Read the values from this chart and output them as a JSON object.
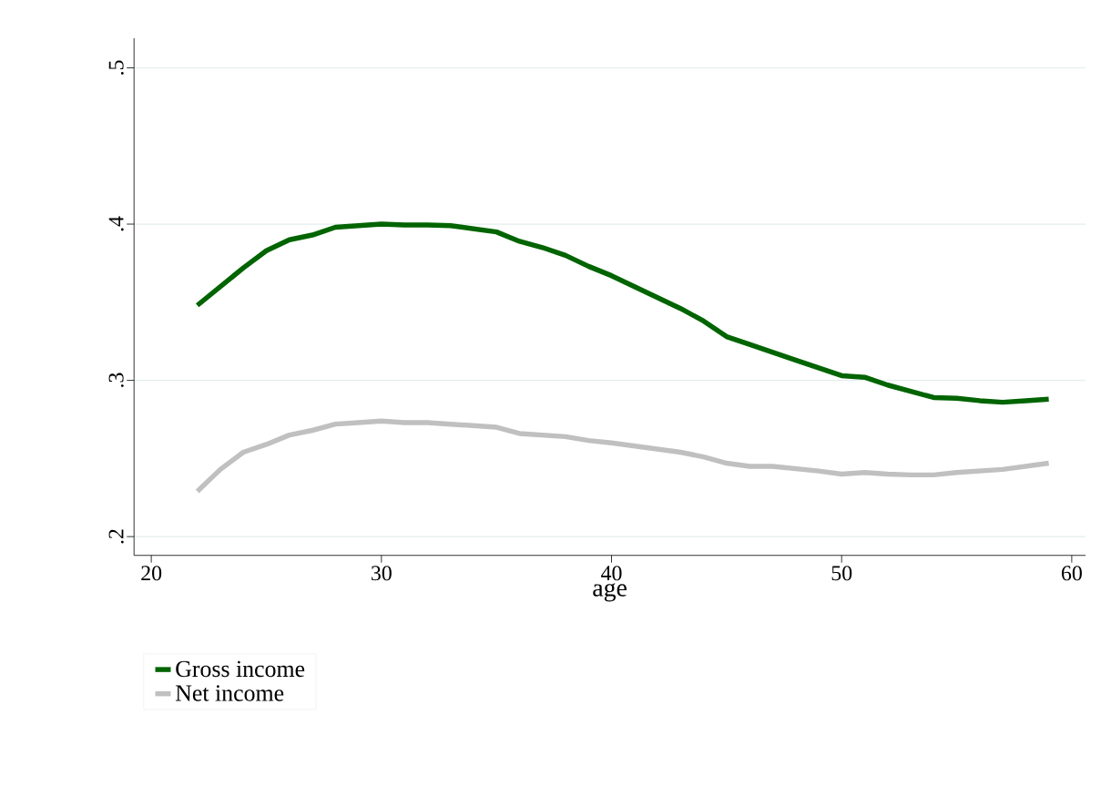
{
  "chart_data": {
    "type": "line",
    "xlabel": "age",
    "x": [
      22,
      23,
      24,
      25,
      26,
      27,
      28,
      29,
      30,
      31,
      32,
      33,
      34,
      35,
      36,
      37,
      38,
      39,
      40,
      41,
      42,
      43,
      44,
      45,
      46,
      47,
      48,
      49,
      50,
      51,
      52,
      53,
      54,
      55,
      56,
      57,
      58,
      59
    ],
    "series": [
      {
        "name": "Gross income",
        "color": "#006400",
        "values": [
          0.348,
          0.36,
          0.372,
          0.383,
          0.39,
          0.393,
          0.398,
          0.399,
          0.4,
          0.3995,
          0.3995,
          0.399,
          0.397,
          0.395,
          0.389,
          0.385,
          0.38,
          0.373,
          0.367,
          0.36,
          0.353,
          0.346,
          0.338,
          0.328,
          0.323,
          0.318,
          0.313,
          0.308,
          0.303,
          0.302,
          0.297,
          0.293,
          0.289,
          0.2885,
          0.287,
          0.286,
          0.287,
          0.288
        ]
      },
      {
        "name": "Net income",
        "color": "#c0c0c0",
        "values": [
          0.229,
          0.243,
          0.254,
          0.259,
          0.265,
          0.268,
          0.272,
          0.273,
          0.274,
          0.273,
          0.273,
          0.272,
          0.271,
          0.27,
          0.266,
          0.265,
          0.264,
          0.2615,
          0.26,
          0.258,
          0.256,
          0.254,
          0.251,
          0.247,
          0.245,
          0.245,
          0.2435,
          0.242,
          0.24,
          0.241,
          0.24,
          0.2395,
          0.2395,
          0.241,
          0.242,
          0.243,
          0.245,
          0.247
        ]
      }
    ],
    "xlim": [
      19.25,
      60.6
    ],
    "ylim": [
      0.188,
      0.519
    ],
    "xticks": [
      20,
      30,
      40,
      50,
      60
    ],
    "yticks": [
      {
        "value": 0.2,
        "label": ".2"
      },
      {
        "value": 0.3,
        "label": ".3"
      },
      {
        "value": 0.4,
        "label": ".4"
      },
      {
        "value": 0.5,
        "label": ".5"
      }
    ],
    "grid": "y",
    "legend": "bottom",
    "marker": "none",
    "line_style": "solid"
  }
}
